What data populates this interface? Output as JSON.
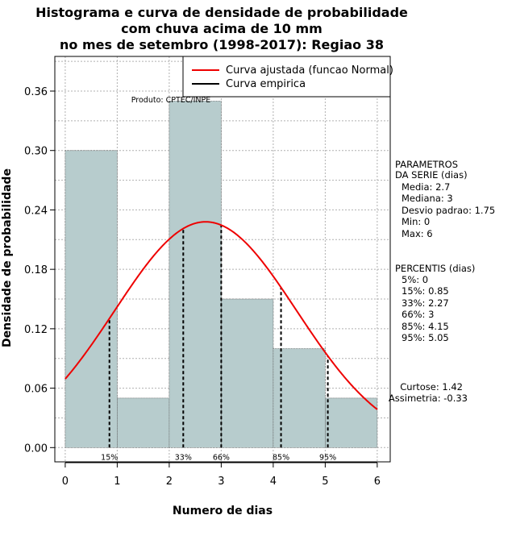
{
  "chart_data": {
    "type": "bar",
    "title_lines": [
      "Histograma e curva de densidade de probabilidade",
      "com chuva acima de 10 mm",
      "no mes de setembro (1998-2017): Regiao 38"
    ],
    "xlabel": "Numero de dias",
    "ylabel": "Densidade de probabilidade",
    "xlim": [
      -0.2,
      6.25
    ],
    "ylim": [
      -0.0144,
      0.395
    ],
    "x_ticks": [
      "0",
      "1",
      "2",
      "3",
      "4",
      "5",
      "6"
    ],
    "y_ticks": [
      "0.00",
      "0.06",
      "0.12",
      "0.18",
      "0.24",
      "0.30",
      "0.36"
    ],
    "bins": [
      {
        "from": 0,
        "to": 1,
        "density": 0.3
      },
      {
        "from": 1,
        "to": 2,
        "density": 0.05
      },
      {
        "from": 2,
        "to": 3,
        "density": 0.35
      },
      {
        "from": 3,
        "to": 4,
        "density": 0.15
      },
      {
        "from": 4,
        "to": 5,
        "density": 0.1
      },
      {
        "from": 5,
        "to": 6,
        "density": 0.05
      }
    ],
    "normal_fit": {
      "mean": 2.7,
      "sd": 1.75
    },
    "series": [
      {
        "name": "Curva ajustada (funcao Normal)",
        "color": "#ee0000"
      },
      {
        "name": "Curva empirica",
        "color": "#000000"
      }
    ],
    "percentile_lines": [
      {
        "label": "15%",
        "x": 0.85
      },
      {
        "label": "33%",
        "x": 2.27
      },
      {
        "label": "66%",
        "x": 3.0
      },
      {
        "label": "85%",
        "x": 4.15
      },
      {
        "label": "95%",
        "x": 5.05
      }
    ],
    "credit": "Produto: CPTEC/INPE",
    "legend_position": "top-right",
    "grid": true,
    "bar_color": "#b7cccd"
  },
  "side_panel": {
    "params_title_1": "PARAMETROS",
    "params_title_2": "DA SERIE (dias)",
    "params": [
      "Media: 2.7",
      "Mediana: 3",
      "Desvio padrao: 1.75",
      "Min: 0",
      "Max: 6"
    ],
    "pct_title": "PERCENTIS (dias)",
    "percentis": [
      "5%: 0",
      "15%: 0.85",
      "33%: 2.27",
      "66%: 3",
      "85%: 4.15",
      "95%: 5.05"
    ],
    "curtose": "Curtose: 1.42",
    "assimetria": "Assimetria: -0.33"
  }
}
